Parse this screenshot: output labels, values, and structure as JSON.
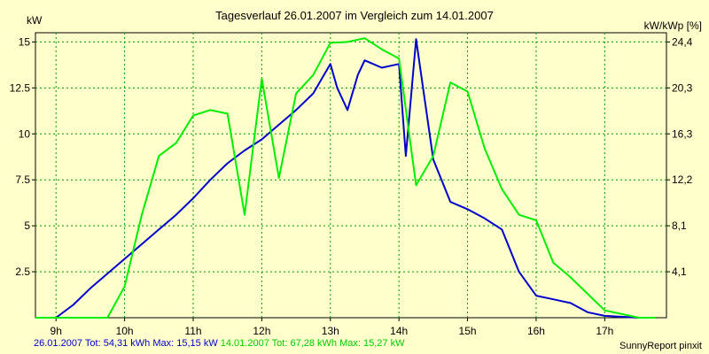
{
  "chart_data": {
    "type": "line",
    "title": "Tagesverlauf 26.01.2007 im Vergleich zum 14.01.2007",
    "ylabel_left": "kW",
    "ylabel_right": "kW/kWp [%]",
    "ylim": [
      0,
      15.5
    ],
    "y_ticks": [
      "15",
      "12.5",
      "10",
      "7.5",
      "5",
      "2.5"
    ],
    "y_tick_values": [
      15,
      12.5,
      10,
      7.5,
      5,
      2.5
    ],
    "y2_ticks": [
      "24,4",
      "20,3",
      "16,3",
      "12,2",
      "8,1",
      "4,1"
    ],
    "y2_tick_values": [
      15,
      12.5,
      10,
      7.5,
      5,
      2.5
    ],
    "xlim": [
      8.7,
      17.9
    ],
    "x_ticks": [
      "9h",
      "10h",
      "11h",
      "12h",
      "13h",
      "14h",
      "15h",
      "16h",
      "17h"
    ],
    "x_tick_values": [
      9,
      10,
      11,
      12,
      13,
      14,
      15,
      16,
      17
    ],
    "series": [
      {
        "name": "26.01.2007",
        "color": "#0000cc",
        "x": [
          8.7,
          9.0,
          9.25,
          9.5,
          9.75,
          10.0,
          10.25,
          10.5,
          10.75,
          11.0,
          11.25,
          11.5,
          11.75,
          12.0,
          12.25,
          12.5,
          12.75,
          13.0,
          13.1,
          13.25,
          13.4,
          13.5,
          13.75,
          14.0,
          14.1,
          14.25,
          14.5,
          14.75,
          15.0,
          15.25,
          15.5,
          15.75,
          16.0,
          16.25,
          16.5,
          16.75,
          17.0,
          17.5,
          17.75
        ],
        "y": [
          0,
          0,
          0.7,
          1.6,
          2.4,
          3.2,
          4.0,
          4.8,
          5.6,
          6.5,
          7.5,
          8.4,
          9.1,
          9.7,
          10.5,
          11.3,
          12.2,
          13.8,
          12.5,
          11.3,
          13.2,
          14.0,
          13.6,
          13.8,
          8.8,
          15.15,
          8.6,
          6.3,
          5.9,
          5.4,
          4.8,
          2.5,
          1.2,
          1.0,
          0.8,
          0.3,
          0.1,
          0,
          0
        ]
      },
      {
        "name": "14.01.2007",
        "color": "#00ee00",
        "x": [
          8.7,
          9.0,
          9.25,
          9.5,
          9.75,
          10.0,
          10.25,
          10.5,
          10.75,
          11.0,
          11.25,
          11.5,
          11.75,
          12.0,
          12.25,
          12.5,
          12.75,
          13.0,
          13.25,
          13.5,
          13.75,
          14.0,
          14.25,
          14.5,
          14.75,
          15.0,
          15.25,
          15.5,
          15.75,
          16.0,
          16.25,
          16.5,
          16.75,
          17.0,
          17.5,
          17.75
        ],
        "y": [
          0,
          0,
          0,
          0,
          0,
          1.7,
          5.6,
          8.8,
          9.5,
          11.0,
          11.3,
          11.1,
          5.6,
          13.0,
          7.6,
          12.2,
          13.2,
          14.95,
          15.0,
          15.2,
          14.6,
          14.1,
          7.2,
          8.8,
          12.8,
          12.3,
          9.2,
          7.0,
          5.6,
          5.3,
          3.0,
          2.2,
          1.3,
          0.4,
          0,
          0
        ]
      }
    ],
    "legend_position": "bottom-left",
    "grid": true
  },
  "legend": {
    "series1_text": "26.01.2007 Tot: 54,31 kWh Max: 15,15 kW",
    "series2_text": "14.01.2007 Tot: 67,28 kWh Max: 15,27 kW"
  },
  "footer": {
    "credit": "SunnyReport pinxit"
  }
}
